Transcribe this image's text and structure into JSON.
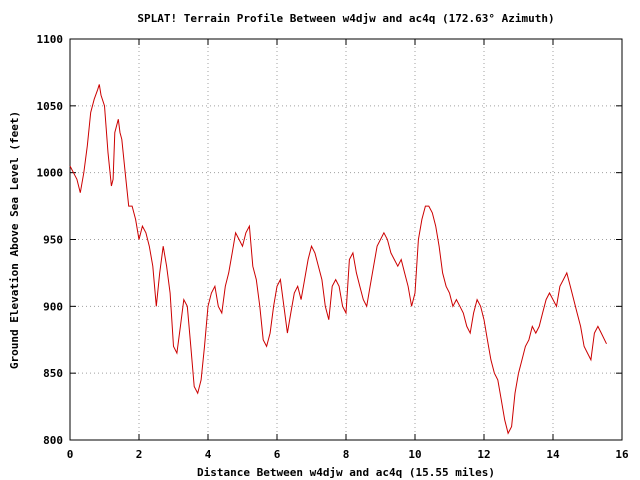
{
  "chart_data": {
    "type": "line",
    "title": "SPLAT! Terrain Profile Between w4djw and ac4q (172.63° Azimuth)",
    "xlabel": "Distance Between w4djw and ac4q (15.55 miles)",
    "ylabel": "Ground Elevation Above Sea Level (feet)",
    "xlim": [
      0,
      16
    ],
    "ylim": [
      800,
      1100
    ],
    "xticks": [
      "0",
      "2",
      "4",
      "6",
      "8",
      "10",
      "12",
      "14",
      "16"
    ],
    "yticks": [
      "800",
      "850",
      "900",
      "950",
      "1000",
      "1050",
      "1100"
    ],
    "grid": true,
    "line_color": "#cc0000",
    "series": [
      {
        "x": [
          0,
          0.1,
          0.2,
          0.3,
          0.4,
          0.5,
          0.6,
          0.7,
          0.8,
          0.85,
          0.9,
          1.0,
          1.1,
          1.2,
          1.25,
          1.3,
          1.4,
          1.45,
          1.5,
          1.6,
          1.7,
          1.8,
          1.9,
          2.0,
          2.1,
          2.2,
          2.3,
          2.4,
          2.5,
          2.6,
          2.7,
          2.8,
          2.9,
          3.0,
          3.1,
          3.2,
          3.3,
          3.4,
          3.5,
          3.6,
          3.7,
          3.8,
          3.9,
          4.0,
          4.1,
          4.2,
          4.3,
          4.4,
          4.5,
          4.6,
          4.7,
          4.8,
          4.9,
          5.0,
          5.1,
          5.2,
          5.3,
          5.4,
          5.5,
          5.6,
          5.7,
          5.8,
          5.9,
          6.0,
          6.1,
          6.2,
          6.3,
          6.4,
          6.5,
          6.6,
          6.7,
          6.8,
          6.9,
          7.0,
          7.1,
          7.2,
          7.3,
          7.4,
          7.5,
          7.6,
          7.7,
          7.8,
          7.9,
          8.0,
          8.1,
          8.2,
          8.3,
          8.4,
          8.5,
          8.6,
          8.7,
          8.8,
          8.9,
          9.0,
          9.1,
          9.2,
          9.3,
          9.4,
          9.5,
          9.6,
          9.7,
          9.8,
          9.9,
          10.0,
          10.1,
          10.2,
          10.3,
          10.4,
          10.5,
          10.6,
          10.7,
          10.8,
          10.9,
          11.0,
          11.1,
          11.2,
          11.3,
          11.4,
          11.5,
          11.6,
          11.7,
          11.8,
          11.9,
          12.0,
          12.1,
          12.2,
          12.3,
          12.4,
          12.5,
          12.6,
          12.7,
          12.8,
          12.9,
          13.0,
          13.1,
          13.2,
          13.3,
          13.4,
          13.5,
          13.6,
          13.7,
          13.8,
          13.9,
          14.0,
          14.1,
          14.2,
          14.3,
          14.4,
          14.5,
          14.6,
          14.7,
          14.8,
          14.9,
          15.0,
          15.1,
          15.2,
          15.3,
          15.4,
          15.55
        ],
        "y": [
          1005,
          1000,
          995,
          985,
          1000,
          1020,
          1045,
          1055,
          1062,
          1066,
          1058,
          1050,
          1015,
          990,
          995,
          1030,
          1040,
          1030,
          1025,
          1000,
          975,
          975,
          965,
          950,
          960,
          955,
          945,
          930,
          900,
          925,
          945,
          930,
          910,
          870,
          865,
          885,
          905,
          900,
          870,
          840,
          835,
          845,
          870,
          900,
          910,
          915,
          900,
          895,
          915,
          925,
          940,
          955,
          950,
          945,
          955,
          960,
          930,
          920,
          900,
          875,
          870,
          880,
          900,
          915,
          920,
          900,
          880,
          895,
          910,
          915,
          905,
          920,
          935,
          945,
          940,
          930,
          920,
          900,
          890,
          915,
          920,
          915,
          900,
          895,
          935,
          940,
          925,
          915,
          905,
          900,
          915,
          930,
          945,
          950,
          955,
          950,
          940,
          935,
          930,
          935,
          925,
          915,
          900,
          910,
          950,
          965,
          975,
          975,
          970,
          960,
          945,
          925,
          915,
          910,
          900,
          905,
          900,
          895,
          885,
          880,
          895,
          905,
          900,
          890,
          875,
          860,
          850,
          845,
          830,
          815,
          805,
          810,
          835,
          850,
          860,
          870,
          875,
          885,
          880,
          885,
          895,
          905,
          910,
          905,
          900,
          915,
          920,
          925,
          915,
          905,
          895,
          885,
          870,
          865,
          860,
          880,
          885,
          880,
          872
        ]
      }
    ]
  }
}
